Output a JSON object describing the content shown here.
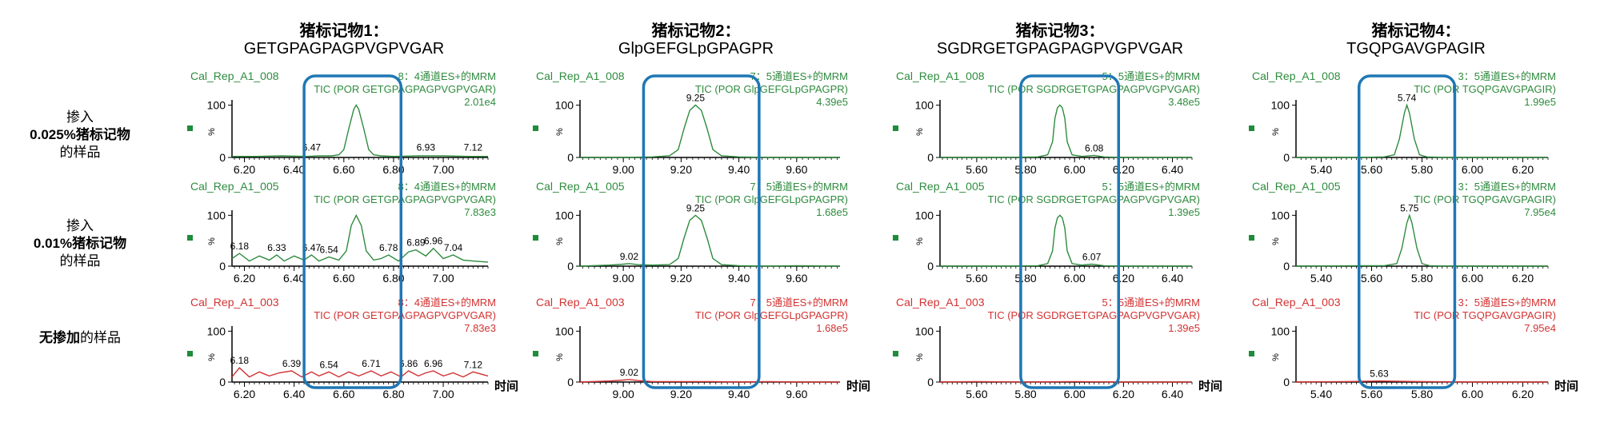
{
  "chart_data": [
    {
      "type": "line",
      "title": "猪标记物1：",
      "subtitle": "GETGPAGPAGPVGPVGAR",
      "xlabel": "时间",
      "xlim": [
        6.15,
        7.18
      ],
      "xticks": [
        "6.20",
        "6.40",
        "6.60",
        "6.80",
        "7.00"
      ],
      "ylim": [
        0,
        110
      ],
      "yticks": [
        "0",
        "100"
      ],
      "ylabel": "%",
      "box_x": [
        6.44,
        6.83
      ],
      "rows": [
        {
          "sample": "Cal_Rep_A1_008",
          "channel": "8：4通道ES+的MRM",
          "tic": "TIC (POR GETGPAGPAGPVGPVGAR)",
          "intensity": "2.01e4",
          "color": "#2e8b3e",
          "x": [
            6.15,
            6.25,
            6.35,
            6.45,
            6.5,
            6.55,
            6.58,
            6.6,
            6.62,
            6.64,
            6.65,
            6.66,
            6.68,
            6.7,
            6.72,
            6.75,
            6.8,
            6.9,
            7.0,
            7.1,
            7.18
          ],
          "y": [
            2,
            2,
            3,
            2,
            3,
            3,
            5,
            15,
            55,
            92,
            100,
            92,
            55,
            15,
            5,
            3,
            2,
            3,
            3,
            2,
            2
          ],
          "labels": [
            {
              "x": 6.47,
              "y": 5,
              "text": "6.47"
            },
            {
              "x": 6.93,
              "y": 5,
              "text": "6.93"
            },
            {
              "x": 7.12,
              "y": 5,
              "text": "7.12"
            }
          ]
        },
        {
          "sample": "Cal_Rep_A1_005",
          "channel": "8：4通道ES+的MRM",
          "tic": "TIC (POR GETGPAGPAGPVGPVGAR)",
          "intensity": "7.83e3",
          "color": "#2e8b3e",
          "x": [
            6.15,
            6.18,
            6.22,
            6.26,
            6.3,
            6.33,
            6.36,
            6.4,
            6.44,
            6.47,
            6.5,
            6.54,
            6.58,
            6.61,
            6.63,
            6.65,
            6.67,
            6.69,
            6.72,
            6.75,
            6.78,
            6.82,
            6.86,
            6.89,
            6.93,
            6.96,
            7.0,
            7.04,
            7.08,
            7.12,
            7.18
          ],
          "y": [
            15,
            25,
            10,
            20,
            12,
            22,
            10,
            20,
            12,
            22,
            10,
            18,
            12,
            30,
            80,
            100,
            80,
            30,
            12,
            15,
            22,
            10,
            28,
            32,
            20,
            35,
            15,
            22,
            12,
            10,
            8
          ],
          "labels": [
            {
              "x": 6.18,
              "y": 25,
              "text": "6.18"
            },
            {
              "x": 6.33,
              "y": 22,
              "text": "6.33"
            },
            {
              "x": 6.47,
              "y": 22,
              "text": "6.47"
            },
            {
              "x": 6.54,
              "y": 18,
              "text": "6.54"
            },
            {
              "x": 6.78,
              "y": 22,
              "text": "6.78"
            },
            {
              "x": 6.89,
              "y": 32,
              "text": "6.89"
            },
            {
              "x": 6.96,
              "y": 35,
              "text": "6.96"
            },
            {
              "x": 7.04,
              "y": 22,
              "text": "7.04"
            }
          ]
        },
        {
          "sample": "Cal_Rep_A1_003",
          "channel": "8：4通道ES+的MRM",
          "tic": "TIC (POR GETGPAGPAGPVGPVGAR)",
          "intensity": "7.83e3",
          "color": "#d23232",
          "x": [
            6.15,
            6.18,
            6.22,
            6.26,
            6.3,
            6.34,
            6.39,
            6.43,
            6.47,
            6.5,
            6.54,
            6.58,
            6.62,
            6.66,
            6.71,
            6.75,
            6.79,
            6.83,
            6.86,
            6.9,
            6.93,
            6.96,
            7.0,
            7.04,
            7.08,
            7.12,
            7.18
          ],
          "y": [
            10,
            28,
            10,
            20,
            12,
            18,
            22,
            10,
            20,
            12,
            20,
            10,
            20,
            12,
            22,
            12,
            20,
            10,
            22,
            12,
            18,
            22,
            12,
            18,
            10,
            20,
            12
          ],
          "labels": [
            {
              "x": 6.18,
              "y": 28,
              "text": "6.18"
            },
            {
              "x": 6.39,
              "y": 22,
              "text": "6.39"
            },
            {
              "x": 6.54,
              "y": 20,
              "text": "6.54"
            },
            {
              "x": 6.71,
              "y": 22,
              "text": "6.71"
            },
            {
              "x": 6.86,
              "y": 22,
              "text": "6.86"
            },
            {
              "x": 6.96,
              "y": 22,
              "text": "6.96"
            },
            {
              "x": 7.12,
              "y": 20,
              "text": "7.12"
            }
          ]
        }
      ]
    },
    {
      "type": "line",
      "title": "猪标记物2：",
      "subtitle": "GlpGEFGLpGPAGPR",
      "xlabel": "时间",
      "xlim": [
        8.85,
        9.75
      ],
      "xticks": [
        "9.00",
        "9.20",
        "9.40",
        "9.60"
      ],
      "ylim": [
        0,
        110
      ],
      "yticks": [
        "0",
        "100"
      ],
      "ylabel": "%",
      "box_x": [
        9.07,
        9.47
      ],
      "rows": [
        {
          "sample": "Cal_Rep_A1_008",
          "channel": "7：5通道ES+的MRM",
          "tic": "TIC (POR GlpGEFGLpGPAGPR)",
          "intensity": "4.39e5",
          "color": "#2e8b3e",
          "x": [
            8.85,
            9.0,
            9.1,
            9.16,
            9.19,
            9.21,
            9.23,
            9.25,
            9.27,
            9.29,
            9.31,
            9.34,
            9.4,
            9.5,
            9.6,
            9.75
          ],
          "y": [
            0,
            0,
            1,
            3,
            15,
            55,
            90,
            100,
            90,
            55,
            15,
            3,
            1,
            0,
            0,
            0
          ],
          "labels": [
            {
              "x": 9.25,
              "y": 100,
              "text": "9.25"
            }
          ]
        },
        {
          "sample": "Cal_Rep_A1_005",
          "channel": "7：5通道ES+的MRM",
          "tic": "TIC (POR GlpGEFGLpGPAGPR)",
          "intensity": "1.68e5",
          "color": "#2e8b3e",
          "x": [
            8.85,
            8.95,
            9.0,
            9.02,
            9.05,
            9.1,
            9.16,
            9.19,
            9.21,
            9.23,
            9.25,
            9.27,
            9.29,
            9.31,
            9.34,
            9.4,
            9.5,
            9.6,
            9.75
          ],
          "y": [
            0,
            2,
            4,
            5,
            3,
            2,
            3,
            15,
            55,
            90,
            100,
            90,
            55,
            15,
            3,
            1,
            0,
            1,
            0
          ],
          "labels": [
            {
              "x": 9.02,
              "y": 5,
              "text": "9.02"
            },
            {
              "x": 9.25,
              "y": 100,
              "text": "9.25"
            }
          ]
        },
        {
          "sample": "Cal_Rep_A1_003",
          "channel": "7：5通道ES+的MRM",
          "tic": "TIC (POR GlpGEFGLpGPAGPR)",
          "intensity": "1.68e5",
          "color": "#d23232",
          "x": [
            8.85,
            8.95,
            9.0,
            9.02,
            9.05,
            9.1,
            9.2,
            9.3,
            9.4,
            9.5,
            9.6,
            9.75
          ],
          "y": [
            0,
            2,
            4,
            5,
            3,
            1,
            1,
            1,
            0,
            1,
            0,
            0
          ],
          "labels": [
            {
              "x": 9.02,
              "y": 5,
              "text": "9.02"
            }
          ]
        }
      ]
    },
    {
      "type": "line",
      "title": "猪标记物3：",
      "subtitle": "SGDRGETGPAGPAGPVGPVGAR",
      "xlabel": "时间",
      "xlim": [
        5.45,
        6.48
      ],
      "xticks": [
        "5.60",
        "5.80",
        "6.00",
        "6.20",
        "6.40"
      ],
      "ylim": [
        0,
        110
      ],
      "yticks": [
        "0",
        "100"
      ],
      "ylabel": "%",
      "box_x": [
        5.78,
        6.18
      ],
      "rows": [
        {
          "sample": "Cal_Rep_A1_008",
          "channel": "5：5通道ES+的MRM",
          "tic": "TIC (POR SGDRGETGPAGPAGPVGPVGAR)",
          "intensity": "3.48e5",
          "color": "#2e8b3e",
          "x": [
            5.45,
            5.7,
            5.85,
            5.89,
            5.91,
            5.92,
            5.93,
            5.94,
            5.95,
            5.96,
            5.97,
            5.99,
            6.03,
            6.08,
            6.12,
            6.2,
            6.48
          ],
          "y": [
            0,
            0,
            1,
            5,
            30,
            75,
            95,
            100,
            95,
            75,
            30,
            5,
            2,
            4,
            1,
            0,
            0
          ],
          "labels": [
            {
              "x": 6.08,
              "y": 4,
              "text": "6.08"
            }
          ]
        },
        {
          "sample": "Cal_Rep_A1_005",
          "channel": "5：5通道ES+的MRM",
          "tic": "TIC (POR SGDRGETGPAGPAGPVGPVGAR)",
          "intensity": "1.39e5",
          "color": "#2e8b3e",
          "x": [
            5.45,
            5.7,
            5.85,
            5.89,
            5.91,
            5.92,
            5.93,
            5.94,
            5.95,
            5.96,
            5.97,
            5.99,
            6.03,
            6.07,
            6.12,
            6.2,
            6.48
          ],
          "y": [
            0,
            0,
            1,
            5,
            30,
            75,
            95,
            100,
            95,
            75,
            30,
            5,
            2,
            4,
            1,
            0,
            0
          ],
          "labels": [
            {
              "x": 6.07,
              "y": 4,
              "text": "6.07"
            }
          ]
        },
        {
          "sample": "Cal_Rep_A1_003",
          "channel": "5：5通道ES+的MRM",
          "tic": "TIC (POR SGDRGETGPAGPAGPVGPVGAR)",
          "intensity": "1.39e5",
          "color": "#d23232",
          "x": [
            5.45,
            5.6,
            5.8,
            6.0,
            6.2,
            6.48
          ],
          "y": [
            0,
            1,
            0,
            1,
            0,
            0
          ],
          "labels": []
        }
      ]
    },
    {
      "type": "line",
      "title": "猪标记物4：",
      "subtitle": "TGQPGAVGPAGIR",
      "xlabel": "时间",
      "xlim": [
        5.3,
        6.3
      ],
      "xticks": [
        "5.40",
        "5.60",
        "5.80",
        "6.00",
        "6.20"
      ],
      "ylim": [
        0,
        110
      ],
      "yticks": [
        "0",
        "100"
      ],
      "ylabel": "%",
      "box_x": [
        5.55,
        5.93
      ],
      "rows": [
        {
          "sample": "Cal_Rep_A1_008",
          "channel": "3：5通道ES+的MRM",
          "tic": "TIC (POR TGQPGAVGPAGIR)",
          "intensity": "1.99e5",
          "color": "#2e8b3e",
          "x": [
            5.3,
            5.55,
            5.65,
            5.69,
            5.71,
            5.73,
            5.74,
            5.75,
            5.77,
            5.79,
            5.82,
            5.9,
            6.3
          ],
          "y": [
            0,
            0,
            1,
            5,
            35,
            85,
            100,
            85,
            35,
            5,
            1,
            0,
            0
          ],
          "labels": [
            {
              "x": 5.74,
              "y": 100,
              "text": "5.74"
            }
          ]
        },
        {
          "sample": "Cal_Rep_A1_005",
          "channel": "3：5通道ES+的MRM",
          "tic": "TIC (POR TGQPGAVGPAGIR)",
          "intensity": "7.95e4",
          "color": "#2e8b3e",
          "x": [
            5.3,
            5.55,
            5.65,
            5.7,
            5.72,
            5.74,
            5.75,
            5.76,
            5.78,
            5.8,
            5.83,
            5.9,
            6.3
          ],
          "y": [
            0,
            1,
            1,
            5,
            35,
            85,
            100,
            85,
            35,
            5,
            1,
            0,
            0
          ],
          "labels": [
            {
              "x": 5.75,
              "y": 100,
              "text": "5.75"
            }
          ]
        },
        {
          "sample": "Cal_Rep_A1_003",
          "channel": "3：5通道ES+的MRM",
          "tic": "TIC (POR TGQPGAVGPAGIR)",
          "intensity": "7.95e4",
          "color": "#d23232",
          "x": [
            5.3,
            5.5,
            5.63,
            5.8,
            6.0,
            6.3
          ],
          "y": [
            0,
            1,
            2,
            1,
            0,
            0
          ],
          "labels": [
            {
              "x": 5.63,
              "y": 2,
              "text": "5.63"
            }
          ]
        }
      ]
    }
  ],
  "row_labels": [
    {
      "line1": "掺入",
      "line2": "0.025%猪标记物",
      "line3": "的样品"
    },
    {
      "line1": "掺入",
      "line2": "0.01%猪标记物",
      "line3": "的样品"
    },
    {
      "line1": "无掺加",
      "line2": "的样品"
    }
  ],
  "colors": {
    "spiked": "#2e8b3e",
    "blank": "#d23232",
    "box": "#1f77b4"
  }
}
